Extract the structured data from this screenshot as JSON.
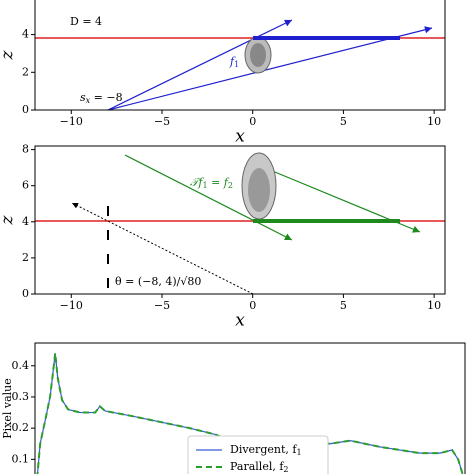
{
  "chart_data": [
    {
      "type": "diagram",
      "xlabel": "x",
      "ylabel": "z",
      "xlim": [
        -12,
        10.6
      ],
      "ylim": [
        0,
        6.1
      ],
      "xticks": [
        {
          "value": -10,
          "label": "−10"
        },
        {
          "value": -5,
          "label": "−5"
        },
        0,
        5,
        10
      ],
      "yticks": [
        0,
        2,
        4
      ],
      "annotations": [
        "D = 4",
        "s",
        "x",
        " = −8",
        "f",
        "1"
      ]
    },
    {
      "type": "diagram",
      "xlabel": "x",
      "ylabel": "z",
      "xlim": [
        -12,
        10.6
      ],
      "ylim": [
        0,
        8.2
      ],
      "xticks": [
        {
          "value": -10,
          "label": "−10"
        },
        {
          "value": -5,
          "label": "−5"
        },
        0,
        5,
        10
      ],
      "yticks": [
        0,
        2,
        4,
        6,
        8
      ],
      "annotations": [
        "𝒯f",
        "1",
        " = f",
        "2",
        "θ = (−8, 4)/√80"
      ]
    },
    {
      "type": "line",
      "ylabel": "Pixel value",
      "xlim": [
        0,
        100
      ],
      "ylim": [
        0.037,
        0.473
      ],
      "yticks": [
        0.1,
        0.2,
        0.3,
        0.4
      ],
      "x": [
        0.5,
        1.2,
        2.3,
        3.5,
        4.2,
        4.7,
        5.3,
        6.3,
        7.7,
        10.5,
        14,
        15.1,
        16.3,
        22.1,
        29.1,
        36,
        41.9,
        45.3,
        50,
        57,
        64,
        68.6,
        73.3,
        80.2,
        89.5,
        94.2,
        97,
        98.4,
        99.5
      ],
      "series": [
        {
          "name": "Divergent, f",
          "sub": "1",
          "color": "#3b5bdb",
          "dash": false,
          "values": [
            0.04,
            0.15,
            0.22,
            0.3,
            0.38,
            0.44,
            0.36,
            0.29,
            0.26,
            0.25,
            0.25,
            0.27,
            0.255,
            0.24,
            0.22,
            0.2,
            0.18,
            0.16,
            0.15,
            0.15,
            0.16,
            0.15,
            0.16,
            0.14,
            0.12,
            0.12,
            0.13,
            0.1,
            0.05
          ]
        },
        {
          "name": "Parallel, f",
          "sub": "2",
          "color": "#2a9d2a",
          "dash": true,
          "values": [
            0.04,
            0.15,
            0.22,
            0.3,
            0.38,
            0.44,
            0.36,
            0.29,
            0.26,
            0.25,
            0.25,
            0.27,
            0.255,
            0.24,
            0.22,
            0.2,
            0.18,
            0.16,
            0.15,
            0.15,
            0.16,
            0.15,
            0.16,
            0.14,
            0.12,
            0.12,
            0.13,
            0.1,
            0.05
          ]
        }
      ]
    }
  ]
}
